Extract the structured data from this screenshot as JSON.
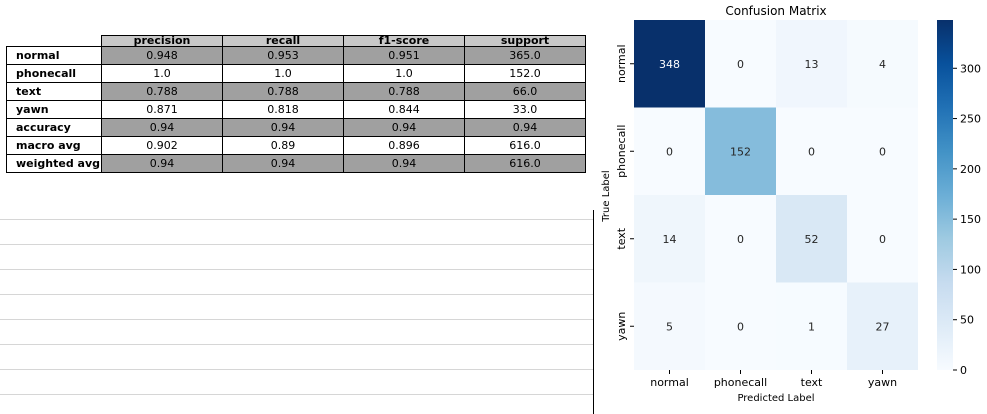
{
  "report": {
    "columns": [
      "precision",
      "recall",
      "f1-score",
      "support"
    ],
    "rows": [
      {
        "label": "normal",
        "values": [
          "0.948",
          "0.953",
          "0.951",
          "365.0"
        ]
      },
      {
        "label": "phonecall",
        "values": [
          "1.0",
          "1.0",
          "1.0",
          "152.0"
        ]
      },
      {
        "label": "text",
        "values": [
          "0.788",
          "0.788",
          "0.788",
          "66.0"
        ]
      },
      {
        "label": "yawn",
        "values": [
          "0.871",
          "0.818",
          "0.844",
          "33.0"
        ]
      },
      {
        "label": "accuracy",
        "values": [
          "0.94",
          "0.94",
          "0.94",
          "0.94"
        ]
      },
      {
        "label": "macro avg",
        "values": [
          "0.902",
          "0.89",
          "0.896",
          "616.0"
        ]
      },
      {
        "label": "weighted avg",
        "values": [
          "0.94",
          "0.94",
          "0.94",
          "616.0"
        ]
      }
    ]
  },
  "colors": {
    "header": "#c8c8c8",
    "shaded_row": "#a0a0a0",
    "cmap_low": "#f7fbff",
    "cmap_high": "#08306b"
  },
  "chart_data": {
    "type": "heatmap",
    "title": "Confusion Matrix",
    "xlabel": "Predicted Label",
    "ylabel": "True Label",
    "x_categories": [
      "normal",
      "phonecall",
      "text",
      "yawn"
    ],
    "y_categories": [
      "normal",
      "phonecall",
      "text",
      "yawn"
    ],
    "values": [
      [
        348,
        0,
        13,
        4
      ],
      [
        0,
        152,
        0,
        0
      ],
      [
        14,
        0,
        52,
        0
      ],
      [
        5,
        0,
        1,
        27
      ]
    ],
    "colormap": "Blues",
    "colorbar": {
      "min": 0,
      "max": 348,
      "ticks": [
        0,
        50,
        100,
        150,
        200,
        250,
        300
      ]
    }
  }
}
